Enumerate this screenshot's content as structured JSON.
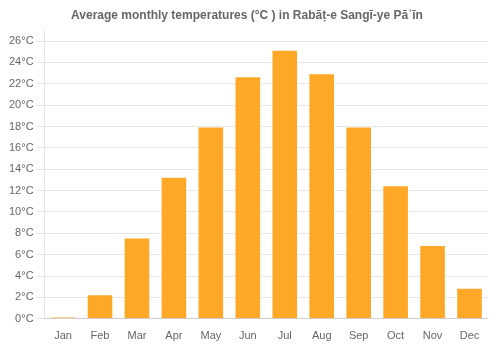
{
  "chart_data": {
    "type": "bar",
    "title": "Average monthly temperatures (°C ) in Rabāṭ-e Sangī-ye Pāʾīn",
    "categories": [
      "Jan",
      "Feb",
      "Mar",
      "Apr",
      "May",
      "Jun",
      "Jul",
      "Aug",
      "Sep",
      "Oct",
      "Nov",
      "Dec"
    ],
    "values": [
      0.2,
      2.3,
      7.6,
      13.3,
      18.0,
      22.7,
      25.2,
      23.0,
      18.0,
      12.5,
      6.9,
      2.9
    ],
    "color": "#FFA726",
    "ylim": [
      0,
      27
    ],
    "yticks": [
      {
        "value": 0,
        "label": "0°C"
      },
      {
        "value": 2,
        "label": "2°C"
      },
      {
        "value": 4,
        "label": "4°C"
      },
      {
        "value": 6,
        "label": "6°C"
      },
      {
        "value": 8,
        "label": "8°C"
      },
      {
        "value": 10,
        "label": "10°C"
      },
      {
        "value": 12,
        "label": "12°C"
      },
      {
        "value": 14,
        "label": "14°C"
      },
      {
        "value": 16,
        "label": "16°C"
      },
      {
        "value": 18,
        "label": "18°C"
      },
      {
        "value": 20,
        "label": "20°C"
      },
      {
        "value": 22,
        "label": "22°C"
      },
      {
        "value": 24,
        "label": "24°C"
      },
      {
        "value": 26,
        "label": "26°C"
      }
    ],
    "grid": true
  }
}
